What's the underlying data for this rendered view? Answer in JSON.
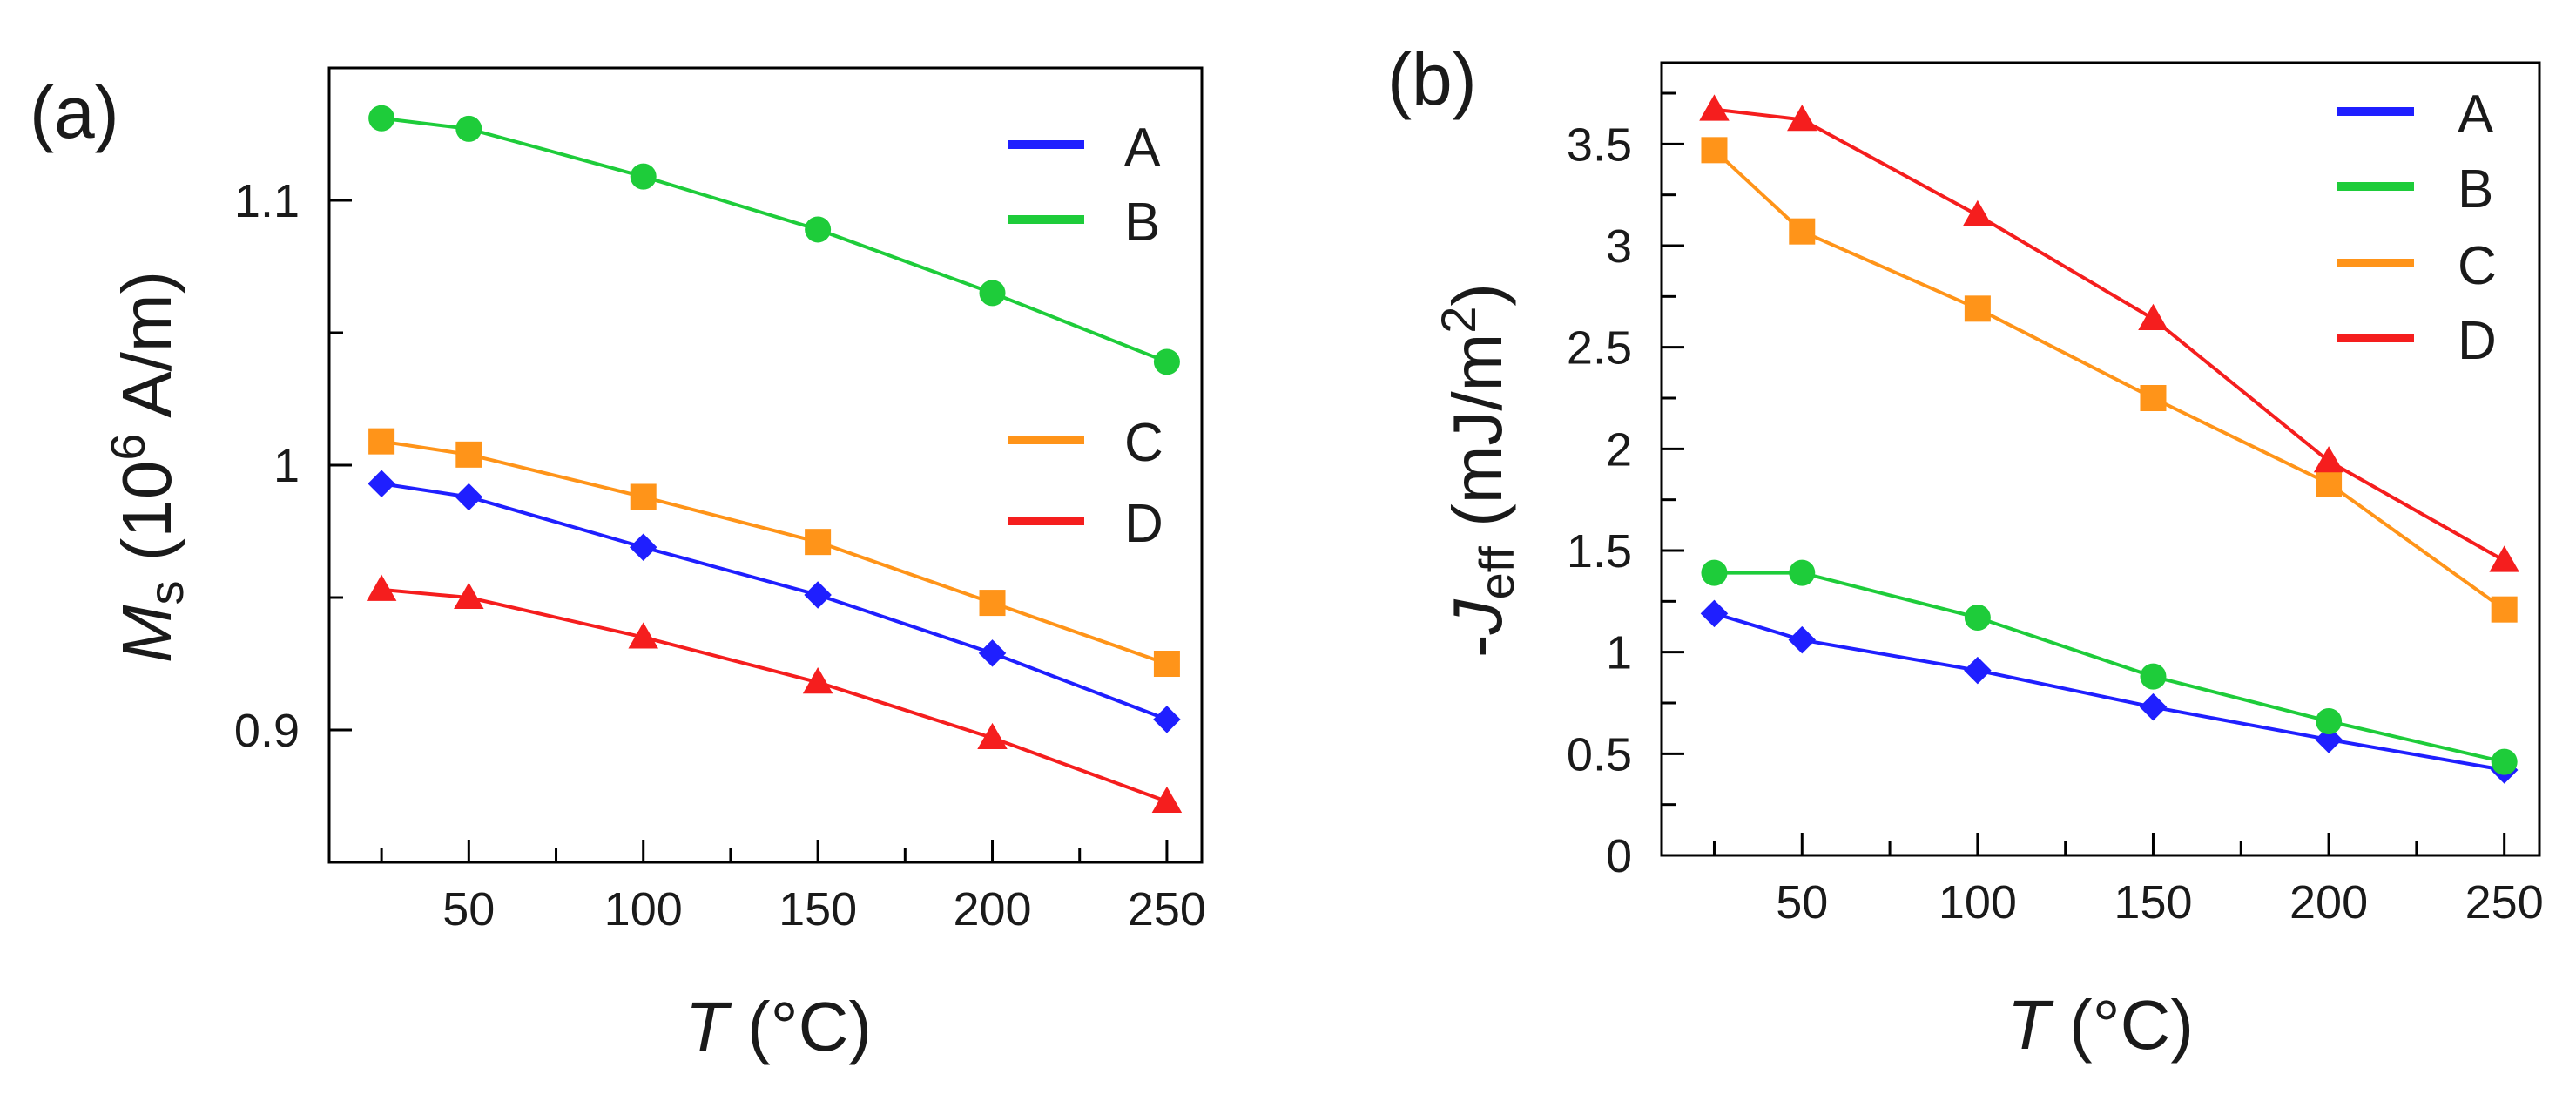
{
  "colors": {
    "A": "#1f1fff",
    "B": "#1ecc3a",
    "C": "#ff9419",
    "D": "#f51e1e"
  },
  "chart_data": [
    {
      "type": "line",
      "panel_label": "(a)",
      "xlabel": {
        "var": "T",
        "unit": " (°C)"
      },
      "ylabel": {
        "var": "M",
        "sub": "s",
        "pre": " (10",
        "sup": "6",
        "post": " A/m)"
      },
      "x": [
        25,
        50,
        100,
        150,
        200,
        250
      ],
      "xlim": [
        10,
        260
      ],
      "ylim": [
        0.85,
        1.15
      ],
      "x_ticks": [
        50,
        100,
        150,
        200,
        250
      ],
      "x_tick_labels": [
        "50",
        "100",
        "150",
        "200",
        "250"
      ],
      "x_minor_ticks": [
        25,
        75,
        125,
        175,
        225
      ],
      "y_ticks": [
        0.9,
        1.0,
        1.1
      ],
      "y_tick_labels": [
        "0.9",
        "1",
        "1.1"
      ],
      "y_minor_ticks": [
        0.95,
        1.05
      ],
      "legend": [
        {
          "name": "A",
          "label": "A"
        },
        {
          "name": "B",
          "label": "B"
        },
        {
          "name": "C",
          "label": "C"
        },
        {
          "name": "D",
          "label": "D"
        }
      ],
      "series": [
        {
          "name": "A",
          "marker": "diamond",
          "values": [
            0.993,
            0.988,
            0.969,
            0.951,
            0.929,
            0.904
          ]
        },
        {
          "name": "B",
          "marker": "circle",
          "values": [
            1.131,
            1.127,
            1.109,
            1.089,
            1.065,
            1.039
          ]
        },
        {
          "name": "C",
          "marker": "square",
          "values": [
            1.009,
            1.004,
            0.988,
            0.971,
            0.948,
            0.925
          ]
        },
        {
          "name": "D",
          "marker": "triangle",
          "values": [
            0.953,
            0.95,
            0.935,
            0.918,
            0.897,
            0.873
          ]
        }
      ]
    },
    {
      "type": "line",
      "panel_label": "(b)",
      "xlabel": {
        "var": "T",
        "unit": " (°C)"
      },
      "ylabel": {
        "pre": "-",
        "var": "J",
        "sub": "eff",
        "post": " (mJ/m",
        "sup": "2",
        "post2": ")"
      },
      "x": [
        25,
        50,
        100,
        150,
        200,
        250
      ],
      "xlim": [
        10,
        260
      ],
      "ylim": [
        0,
        3.9
      ],
      "x_ticks": [
        50,
        100,
        150,
        200,
        250
      ],
      "x_tick_labels": [
        "50",
        "100",
        "150",
        "200",
        "250"
      ],
      "x_minor_ticks": [
        25,
        75,
        125,
        175,
        225
      ],
      "y_ticks": [
        0,
        0.5,
        1,
        1.5,
        2,
        2.5,
        3,
        3.5
      ],
      "y_tick_labels": [
        "0",
        "0.5",
        "1",
        "1.5",
        "2",
        "2.5",
        "3",
        "3.5"
      ],
      "y_minor_ticks": [
        0.25,
        0.75,
        1.25,
        1.75,
        2.25,
        2.75,
        3.25,
        3.75
      ],
      "legend": [
        {
          "name": "A",
          "label": "A"
        },
        {
          "name": "B",
          "label": "B"
        },
        {
          "name": "C",
          "label": "C"
        },
        {
          "name": "D",
          "label": "D"
        }
      ],
      "series": [
        {
          "name": "A",
          "marker": "diamond",
          "values": [
            1.19,
            1.06,
            0.91,
            0.73,
            0.57,
            0.42
          ]
        },
        {
          "name": "B",
          "marker": "circle",
          "values": [
            1.39,
            1.39,
            1.17,
            0.88,
            0.66,
            0.46
          ]
        },
        {
          "name": "C",
          "marker": "square",
          "values": [
            3.47,
            3.07,
            2.69,
            2.25,
            1.83,
            1.21
          ]
        },
        {
          "name": "D",
          "marker": "triangle",
          "values": [
            3.67,
            3.62,
            3.15,
            2.64,
            1.94,
            1.45
          ]
        }
      ]
    }
  ]
}
